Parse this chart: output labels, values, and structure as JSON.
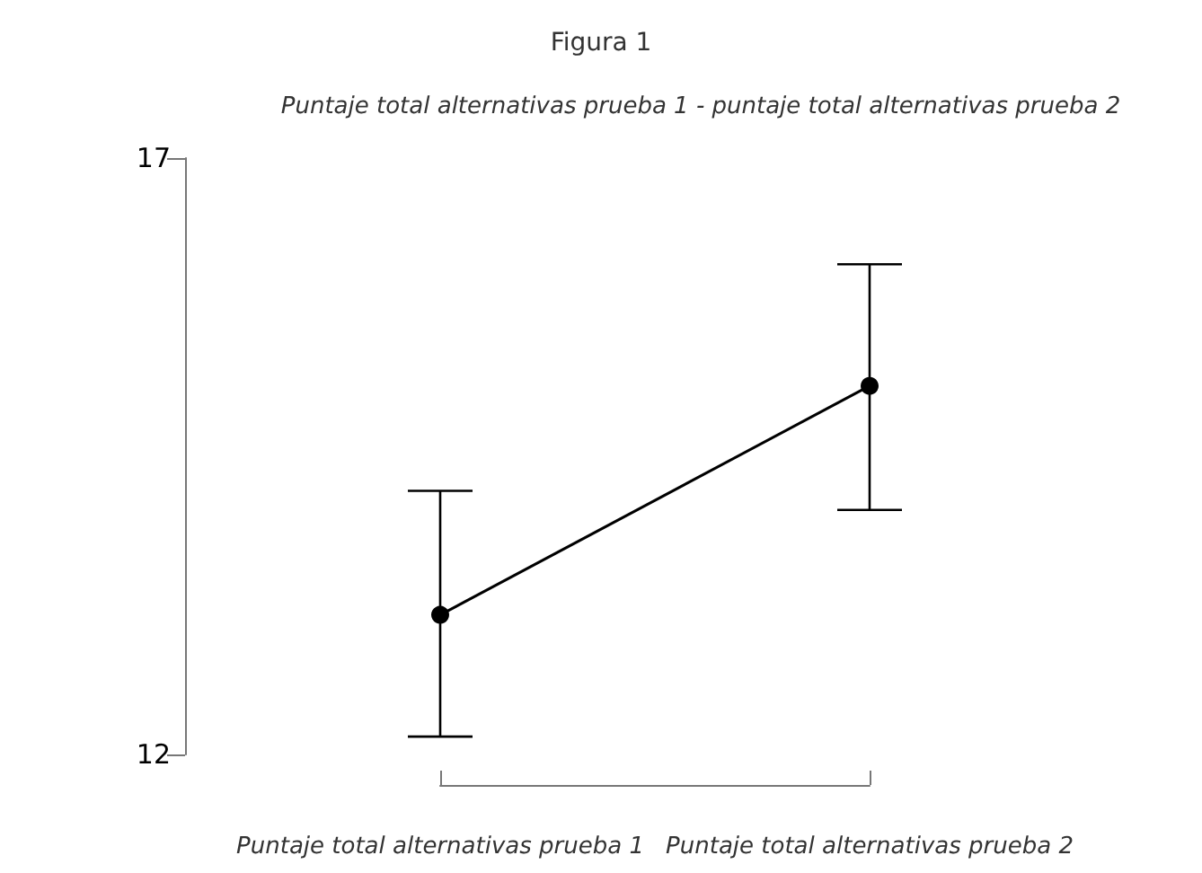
{
  "chart_data": {
    "type": "line",
    "title": "Figura 1",
    "subtitle": "Puntaje total alternativas prueba 1 - puntaje total alternativas prueba 2",
    "categories": [
      "Puntaje total alternativas prueba 1",
      "Puntaje total alternativas prueba 2"
    ],
    "values": [
      13.17,
      15.09
    ],
    "errors": [
      [
        12.15,
        14.21
      ],
      [
        14.05,
        16.11
      ]
    ],
    "color": "#000000",
    "ylim": [
      12,
      17
    ],
    "yticks": [
      12,
      17
    ],
    "grid": false,
    "marker": "circle",
    "line_style": "solid"
  }
}
